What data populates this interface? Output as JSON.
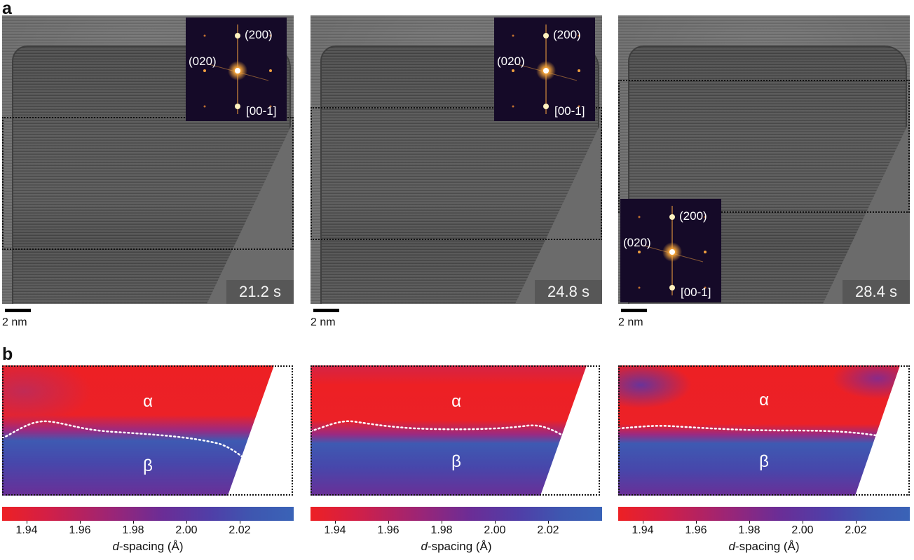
{
  "figure": {
    "panel_a_letter": "a",
    "panel_b_letter": "b"
  },
  "panels": [
    {
      "time_label": "21.2 s",
      "scale_bar_label": "2 nm",
      "fft": {
        "spot_top": "(200)",
        "spot_left": "(020)",
        "zone_axis": "[00-1]"
      },
      "alpha_label": "α",
      "beta_label": "β",
      "colorbar": {
        "ticks": [
          "1.94",
          "1.96",
          "1.98",
          "2.00",
          "2.02"
        ],
        "axis_italic": "d",
        "axis_rest": "-spacing (Å)"
      }
    },
    {
      "time_label": "24.8 s",
      "scale_bar_label": "2 nm",
      "fft": {
        "spot_top": "(200)",
        "spot_left": "(020)",
        "zone_axis": "[00-1]"
      },
      "alpha_label": "α",
      "beta_label": "β",
      "colorbar": {
        "ticks": [
          "1.94",
          "1.96",
          "1.98",
          "2.00",
          "2.02"
        ],
        "axis_italic": "d",
        "axis_rest": "-spacing (Å)"
      }
    },
    {
      "time_label": "28.4 s",
      "scale_bar_label": "2 nm",
      "fft": {
        "spot_top": "(200)",
        "spot_left": "(020)",
        "zone_axis": "[00-1]"
      },
      "alpha_label": "α",
      "beta_label": "β",
      "colorbar": {
        "ticks": [
          "1.94",
          "1.96",
          "1.98",
          "2.00",
          "2.02"
        ],
        "axis_italic": "d",
        "axis_rest": "-spacing (Å)"
      }
    }
  ],
  "colors": {
    "alpha_red": "#ed2024",
    "beta_blue": "#3a63b7",
    "fft_background": "#150a28",
    "boundary": "#ffffff"
  }
}
